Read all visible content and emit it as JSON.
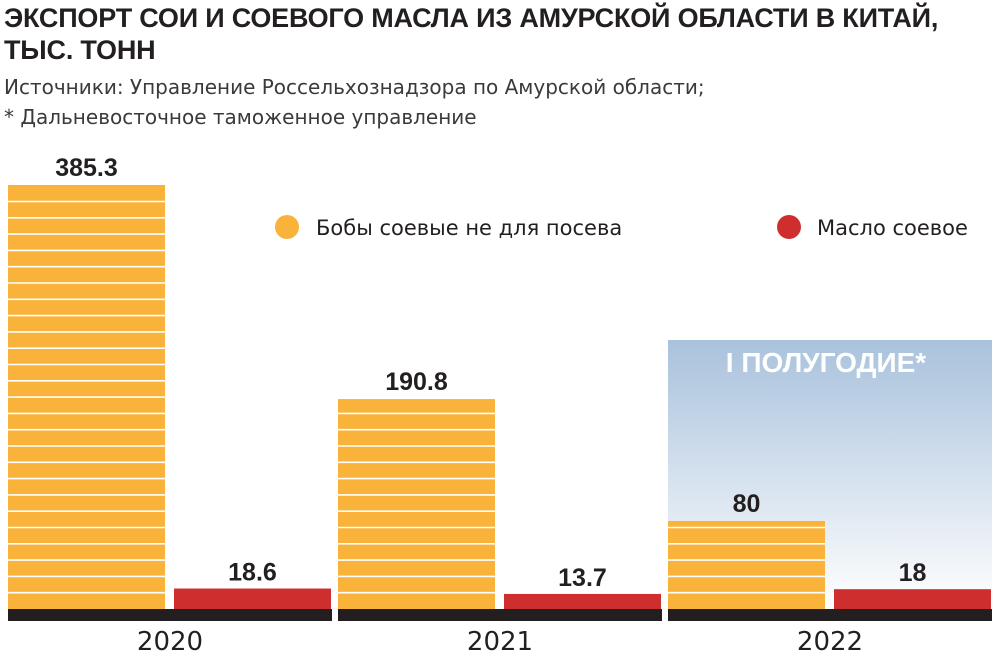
{
  "header": {
    "title_lines": [
      "ЭКСПОРТ СОИ И СОЕВОГО МАСЛА ИЗ АМУРСКОЙ ОБЛАСТИ В КИТАЙ,",
      "ТЫС. ТОНН"
    ],
    "source_lines": [
      "Источники: Управление Россельхознадзора по Амурской области;",
      "* Дальневосточное таможенное управление"
    ]
  },
  "chart_data": {
    "type": "bar",
    "title": "ЭКСПОРТ СОИ И СОЕВОГО МАСЛА ИЗ АМУРСКОЙ ОБЛАСТИ В КИТАЙ, ТЫС. ТОНН",
    "categories": [
      "2020",
      "2021",
      "2022"
    ],
    "series": [
      {
        "name": "Бобы соевые не для посева",
        "values": [
          385.3,
          190.8,
          80
        ],
        "labels": [
          "385.3",
          "190.8",
          "80"
        ],
        "color": "#f9b33b"
      },
      {
        "name": "Масло соевое",
        "values": [
          18.6,
          13.7,
          18
        ],
        "labels": [
          "18.6",
          "13.7",
          "18"
        ],
        "color": "#cf2e2e"
      }
    ],
    "period_note": "I ПОЛУГОДИЕ*",
    "legend_position": "top-right",
    "grid": false,
    "xlabel": "",
    "ylabel": ""
  },
  "colors": {
    "soy": "#f9b33b",
    "oil": "#cf2e2e",
    "baseline": "#231f20",
    "highlight_top": "#a9c2dc",
    "highlight_bottom": "#ffffff"
  }
}
